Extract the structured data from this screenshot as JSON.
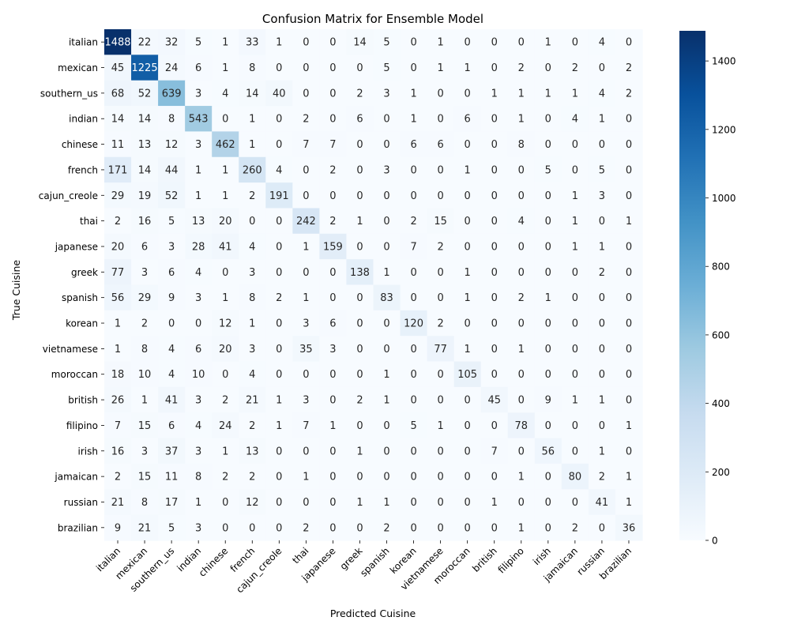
{
  "chart_data": {
    "type": "heatmap",
    "title": "Confusion Matrix for Ensemble Model",
    "xlabel": "Predicted Cuisine",
    "ylabel": "True Cuisine",
    "x_categories": [
      "italian",
      "mexican",
      "southern_us",
      "indian",
      "chinese",
      "french",
      "cajun_creole",
      "thai",
      "japanese",
      "greek",
      "spanish",
      "korean",
      "vietnamese",
      "moroccan",
      "british",
      "filipino",
      "irish",
      "jamaican",
      "russian",
      "brazilian"
    ],
    "y_categories": [
      "italian",
      "mexican",
      "southern_us",
      "indian",
      "chinese",
      "french",
      "cajun_creole",
      "thai",
      "japanese",
      "greek",
      "spanish",
      "korean",
      "vietnamese",
      "moroccan",
      "british",
      "filipino",
      "irish",
      "jamaican",
      "russian",
      "brazilian"
    ],
    "values": [
      [
        1488,
        22,
        32,
        5,
        1,
        33,
        1,
        0,
        0,
        14,
        5,
        0,
        1,
        0,
        0,
        0,
        1,
        0,
        4,
        0
      ],
      [
        45,
        1225,
        24,
        6,
        1,
        8,
        0,
        0,
        0,
        0,
        5,
        0,
        1,
        1,
        0,
        2,
        0,
        2,
        0,
        2
      ],
      [
        68,
        52,
        639,
        3,
        4,
        14,
        40,
        0,
        0,
        2,
        3,
        1,
        0,
        0,
        1,
        1,
        1,
        1,
        4,
        2
      ],
      [
        14,
        14,
        8,
        543,
        0,
        1,
        0,
        2,
        0,
        6,
        0,
        1,
        0,
        6,
        0,
        1,
        0,
        4,
        1,
        0
      ],
      [
        11,
        13,
        12,
        3,
        462,
        1,
        0,
        7,
        7,
        0,
        0,
        6,
        6,
        0,
        0,
        8,
        0,
        0,
        0,
        0
      ],
      [
        171,
        14,
        44,
        1,
        1,
        260,
        4,
        0,
        2,
        0,
        3,
        0,
        0,
        1,
        0,
        0,
        5,
        0,
        5,
        0
      ],
      [
        29,
        19,
        52,
        1,
        1,
        2,
        191,
        0,
        0,
        0,
        0,
        0,
        0,
        0,
        0,
        0,
        0,
        1,
        3,
        0
      ],
      [
        2,
        16,
        5,
        13,
        20,
        0,
        0,
        242,
        2,
        1,
        0,
        2,
        15,
        0,
        0,
        4,
        0,
        1,
        0,
        1
      ],
      [
        20,
        6,
        3,
        28,
        41,
        4,
        0,
        1,
        159,
        0,
        0,
        7,
        2,
        0,
        0,
        0,
        0,
        1,
        1,
        0
      ],
      [
        77,
        3,
        6,
        4,
        0,
        3,
        0,
        0,
        0,
        138,
        1,
        0,
        0,
        1,
        0,
        0,
        0,
        0,
        2,
        0
      ],
      [
        56,
        29,
        9,
        3,
        1,
        8,
        2,
        1,
        0,
        0,
        83,
        0,
        0,
        1,
        0,
        2,
        1,
        0,
        0,
        0
      ],
      [
        1,
        2,
        0,
        0,
        12,
        1,
        0,
        3,
        6,
        0,
        0,
        120,
        2,
        0,
        0,
        0,
        0,
        0,
        0,
        0
      ],
      [
        1,
        8,
        4,
        6,
        20,
        3,
        0,
        35,
        3,
        0,
        0,
        0,
        77,
        1,
        0,
        1,
        0,
        0,
        0,
        0
      ],
      [
        18,
        10,
        4,
        10,
        0,
        4,
        0,
        0,
        0,
        0,
        1,
        0,
        0,
        105,
        0,
        0,
        0,
        0,
        0,
        0
      ],
      [
        26,
        1,
        41,
        3,
        2,
        21,
        1,
        3,
        0,
        2,
        1,
        0,
        0,
        0,
        45,
        0,
        9,
        1,
        1,
        0
      ],
      [
        7,
        15,
        6,
        4,
        24,
        2,
        1,
        7,
        1,
        0,
        0,
        5,
        1,
        0,
        0,
        78,
        0,
        0,
        0,
        1
      ],
      [
        16,
        3,
        37,
        3,
        1,
        13,
        0,
        0,
        0,
        1,
        0,
        0,
        0,
        0,
        7,
        0,
        56,
        0,
        1,
        0
      ],
      [
        2,
        15,
        11,
        8,
        2,
        2,
        0,
        1,
        0,
        0,
        0,
        0,
        0,
        0,
        0,
        1,
        0,
        80,
        2,
        1
      ],
      [
        21,
        8,
        17,
        1,
        0,
        12,
        0,
        0,
        0,
        1,
        1,
        0,
        0,
        0,
        1,
        0,
        0,
        0,
        41,
        1
      ],
      [
        9,
        21,
        5,
        3,
        0,
        0,
        0,
        2,
        0,
        0,
        2,
        0,
        0,
        0,
        0,
        1,
        0,
        2,
        0,
        36
      ]
    ],
    "colorbar": {
      "colormap": "Blues",
      "range": [
        0,
        1488
      ],
      "ticks": [
        0,
        200,
        400,
        600,
        800,
        1000,
        1200,
        1400
      ]
    }
  }
}
